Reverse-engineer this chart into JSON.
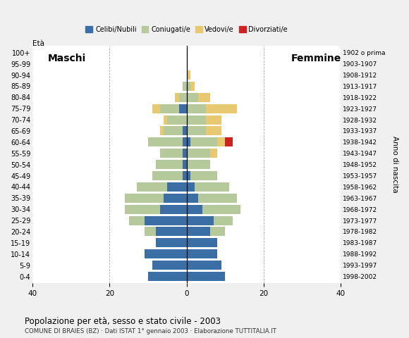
{
  "age_groups": [
    "0-4",
    "5-9",
    "10-14",
    "15-19",
    "20-24",
    "25-29",
    "30-34",
    "35-39",
    "40-44",
    "45-49",
    "50-54",
    "55-59",
    "60-64",
    "65-69",
    "70-74",
    "75-79",
    "80-84",
    "85-89",
    "90-94",
    "95-99",
    "100+"
  ],
  "birth_years": [
    "1998-2002",
    "1993-1997",
    "1988-1992",
    "1983-1987",
    "1978-1982",
    "1973-1977",
    "1968-1972",
    "1963-1967",
    "1958-1962",
    "1953-1957",
    "1948-1952",
    "1943-1947",
    "1938-1942",
    "1933-1937",
    "1928-1932",
    "1923-1927",
    "1918-1922",
    "1913-1917",
    "1908-1912",
    "1903-1907",
    "1902 o prima"
  ],
  "males": {
    "celibi": [
      10,
      9,
      11,
      8,
      8,
      11,
      7,
      6,
      5,
      1,
      1,
      1,
      1,
      1,
      0,
      2,
      0,
      0,
      0,
      0,
      0
    ],
    "coniugati": [
      0,
      0,
      0,
      0,
      3,
      4,
      9,
      10,
      8,
      8,
      7,
      6,
      9,
      5,
      5,
      5,
      2,
      1,
      0,
      0,
      0
    ],
    "vedovi": [
      0,
      0,
      0,
      0,
      0,
      0,
      0,
      0,
      0,
      0,
      0,
      0,
      0,
      1,
      1,
      2,
      1,
      0,
      0,
      0,
      0
    ],
    "divorziati": [
      0,
      0,
      0,
      0,
      0,
      0,
      0,
      0,
      0,
      0,
      0,
      0,
      0,
      0,
      0,
      0,
      0,
      0,
      0,
      0,
      0
    ]
  },
  "females": {
    "nubili": [
      10,
      9,
      8,
      8,
      6,
      7,
      4,
      3,
      2,
      1,
      0,
      0,
      1,
      0,
      0,
      0,
      0,
      0,
      0,
      0,
      0
    ],
    "coniugate": [
      0,
      0,
      0,
      0,
      4,
      5,
      10,
      10,
      9,
      7,
      6,
      6,
      7,
      5,
      5,
      5,
      3,
      1,
      0,
      0,
      0
    ],
    "vedove": [
      0,
      0,
      0,
      0,
      0,
      0,
      0,
      0,
      0,
      0,
      0,
      2,
      2,
      4,
      4,
      8,
      3,
      1,
      1,
      0,
      0
    ],
    "divorziate": [
      0,
      0,
      0,
      0,
      0,
      0,
      0,
      0,
      0,
      0,
      0,
      0,
      2,
      0,
      0,
      0,
      0,
      0,
      0,
      0,
      0
    ]
  },
  "colors": {
    "celibi_nubili": "#3B6EA5",
    "coniugati_e": "#B5C99A",
    "vedovi_e": "#E8C870",
    "divorziati_e": "#CC2222"
  },
  "xlim": 40,
  "title": "Popolazione per età, sesso e stato civile - 2003",
  "subtitle": "COMUNE DI BRAIES (BZ) · Dati ISTAT 1° gennaio 2003 · Elaborazione TUTTITALIA.IT",
  "legend_labels": [
    "Celibi/Nubili",
    "Coniugati/e",
    "Vedovi/e",
    "Divorziati/e"
  ],
  "label_maschi": "Maschi",
  "label_femmine": "Femmine",
  "label_eta": "Età",
  "label_anno": "Anno di nascita",
  "bg_color": "#F0F0F0",
  "plot_bg_color": "#FFFFFF"
}
